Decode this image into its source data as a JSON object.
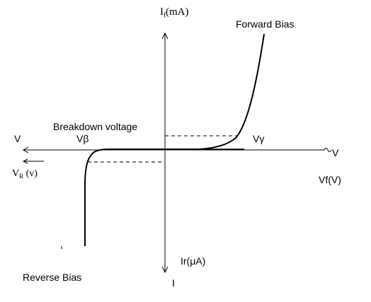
{
  "labels": {
    "if_axis_main": "I",
    "if_axis_sub": "f",
    "if_axis_unit": "(mA)",
    "forward_bias": "Forward Bias",
    "breakdown_voltage": "Breakdown voltage",
    "v_left": "V",
    "v_beta": "Vβ",
    "v_gamma": "Vγ",
    "v_right": "V",
    "vr_main": "V",
    "vr_sub": "R",
    "vr_unit": " (v)",
    "vf_axis": "Vf(V)",
    "ir_axis": "Ir(μA)",
    "i_bottom": "I",
    "reverse_bias": "Reverse Bias"
  },
  "colors": {
    "stroke": "#000000",
    "background": "#ffffff"
  }
}
